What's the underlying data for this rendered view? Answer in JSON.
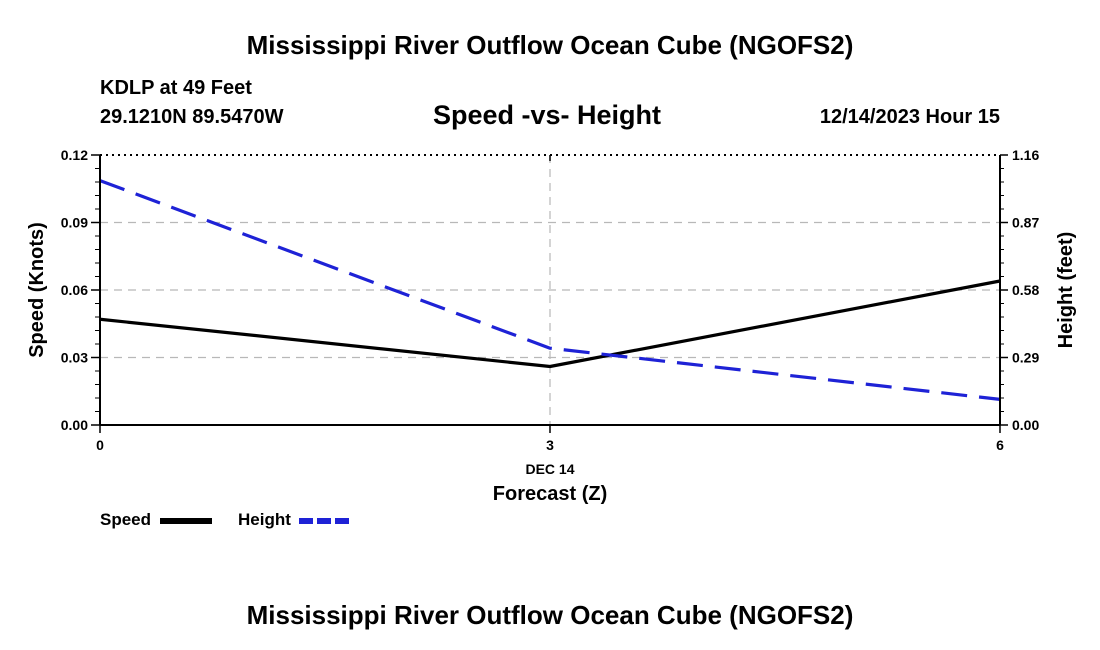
{
  "page": {
    "title": "Mississippi River Outflow Ocean Cube (NGOFS2)",
    "station": "KDLP at 49 Feet",
    "coords": "29.1210N  89.5470W",
    "date_hour": "12/14/2023 Hour 15",
    "footer_title": "Mississippi River Outflow Ocean Cube (NGOFS2)"
  },
  "chart_data": {
    "type": "line",
    "title": "Speed -vs- Height",
    "xlabel": "Forecast (Z)",
    "x_date_label": "DEC 14",
    "ylabel": "Speed (Knots)",
    "y2label": "Height (feet)",
    "x": [
      0,
      3,
      6
    ],
    "x_ticks": [
      "0",
      "3",
      "6"
    ],
    "xlim": [
      0,
      6
    ],
    "ylim": [
      0,
      0.12
    ],
    "y_ticks": [
      "0.00",
      "0.03",
      "0.06",
      "0.09",
      "0.12"
    ],
    "y2lim": [
      0,
      1.16
    ],
    "y2_ticks": [
      "0.00",
      "0.29",
      "0.58",
      "0.87",
      "1.16"
    ],
    "grid": true,
    "legend": "bottom-left",
    "series": [
      {
        "name": "Speed",
        "axis": "left",
        "values": [
          0.047,
          0.026,
          0.064
        ],
        "color": "#000000",
        "style": "solid"
      },
      {
        "name": "Height",
        "axis": "right",
        "values": [
          1.05,
          0.33,
          0.11
        ],
        "color": "#1e22d6",
        "style": "dashed"
      }
    ]
  }
}
